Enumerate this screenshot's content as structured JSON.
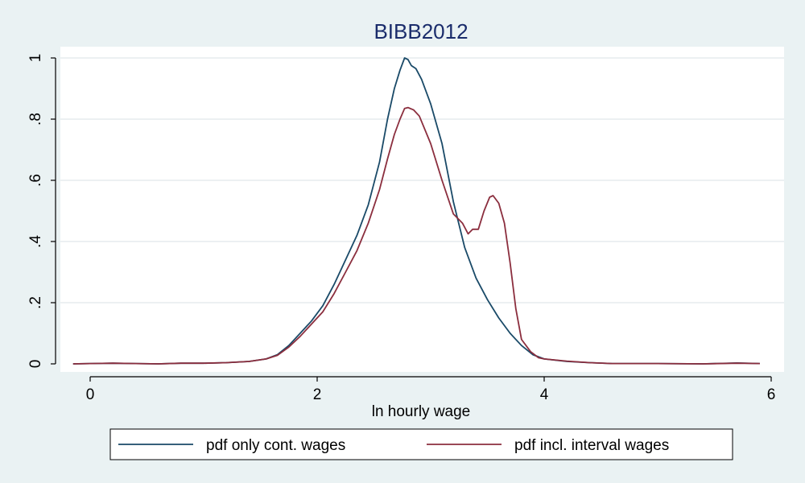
{
  "chart_data": {
    "type": "line",
    "title": "BIBB2012",
    "xlabel": "ln hourly wage",
    "ylabel": "",
    "xlim": [
      -0.25,
      6.05
    ],
    "ylim": [
      0,
      1
    ],
    "xticks": [
      0,
      2,
      4,
      6
    ],
    "xtick_labels": [
      "0",
      "2",
      "4",
      "6"
    ],
    "yticks": [
      0,
      0.2,
      0.4,
      0.6,
      0.8,
      1
    ],
    "ytick_labels": [
      "0",
      ".2",
      ".4",
      ".6",
      ".8",
      "1"
    ],
    "grid": true,
    "legend_position": "bottom",
    "series": [
      {
        "name": "pdf only cont. wages",
        "color": "#1a4a68",
        "points": [
          [
            -0.15,
            0.0
          ],
          [
            0.0,
            0.001
          ],
          [
            0.2,
            0.002
          ],
          [
            0.4,
            0.001
          ],
          [
            0.6,
            0.0
          ],
          [
            0.8,
            0.002
          ],
          [
            1.0,
            0.002
          ],
          [
            1.2,
            0.004
          ],
          [
            1.4,
            0.008
          ],
          [
            1.55,
            0.016
          ],
          [
            1.65,
            0.03
          ],
          [
            1.75,
            0.06
          ],
          [
            1.85,
            0.1
          ],
          [
            1.95,
            0.14
          ],
          [
            2.05,
            0.19
          ],
          [
            2.15,
            0.26
          ],
          [
            2.25,
            0.34
          ],
          [
            2.35,
            0.42
          ],
          [
            2.45,
            0.52
          ],
          [
            2.55,
            0.66
          ],
          [
            2.62,
            0.8
          ],
          [
            2.68,
            0.9
          ],
          [
            2.73,
            0.96
          ],
          [
            2.77,
            1.0
          ],
          [
            2.8,
            0.995
          ],
          [
            2.83,
            0.975
          ],
          [
            2.87,
            0.965
          ],
          [
            2.92,
            0.93
          ],
          [
            3.0,
            0.85
          ],
          [
            3.1,
            0.72
          ],
          [
            3.2,
            0.53
          ],
          [
            3.3,
            0.38
          ],
          [
            3.4,
            0.28
          ],
          [
            3.5,
            0.21
          ],
          [
            3.6,
            0.15
          ],
          [
            3.7,
            0.1
          ],
          [
            3.8,
            0.06
          ],
          [
            3.9,
            0.03
          ],
          [
            4.0,
            0.016
          ],
          [
            4.2,
            0.008
          ],
          [
            4.4,
            0.004
          ],
          [
            4.6,
            0.001
          ],
          [
            5.0,
            0.001
          ],
          [
            5.4,
            0.0
          ],
          [
            5.7,
            0.003
          ],
          [
            5.9,
            0.001
          ]
        ]
      },
      {
        "name": "pdf incl. interval wages",
        "color": "#8b2e3e",
        "points": [
          [
            -0.15,
            0.0
          ],
          [
            0.0,
            0.001
          ],
          [
            0.2,
            0.002
          ],
          [
            0.4,
            0.001
          ],
          [
            0.6,
            0.0
          ],
          [
            0.8,
            0.002
          ],
          [
            1.0,
            0.002
          ],
          [
            1.2,
            0.004
          ],
          [
            1.4,
            0.008
          ],
          [
            1.55,
            0.016
          ],
          [
            1.65,
            0.028
          ],
          [
            1.75,
            0.055
          ],
          [
            1.85,
            0.09
          ],
          [
            1.95,
            0.13
          ],
          [
            2.05,
            0.17
          ],
          [
            2.15,
            0.23
          ],
          [
            2.25,
            0.3
          ],
          [
            2.35,
            0.37
          ],
          [
            2.45,
            0.46
          ],
          [
            2.55,
            0.57
          ],
          [
            2.62,
            0.67
          ],
          [
            2.68,
            0.75
          ],
          [
            2.73,
            0.8
          ],
          [
            2.77,
            0.835
          ],
          [
            2.8,
            0.838
          ],
          [
            2.85,
            0.83
          ],
          [
            2.9,
            0.81
          ],
          [
            3.0,
            0.72
          ],
          [
            3.1,
            0.6
          ],
          [
            3.2,
            0.49
          ],
          [
            3.28,
            0.46
          ],
          [
            3.33,
            0.425
          ],
          [
            3.37,
            0.44
          ],
          [
            3.42,
            0.44
          ],
          [
            3.47,
            0.5
          ],
          [
            3.52,
            0.545
          ],
          [
            3.55,
            0.55
          ],
          [
            3.6,
            0.525
          ],
          [
            3.65,
            0.46
          ],
          [
            3.7,
            0.33
          ],
          [
            3.75,
            0.18
          ],
          [
            3.8,
            0.08
          ],
          [
            3.88,
            0.04
          ],
          [
            3.95,
            0.02
          ],
          [
            4.0,
            0.016
          ],
          [
            4.2,
            0.009
          ],
          [
            4.4,
            0.004
          ],
          [
            4.6,
            0.001
          ],
          [
            5.0,
            0.001
          ],
          [
            5.4,
            0.0
          ],
          [
            5.7,
            0.002
          ],
          [
            5.9,
            0.001
          ]
        ]
      }
    ]
  }
}
